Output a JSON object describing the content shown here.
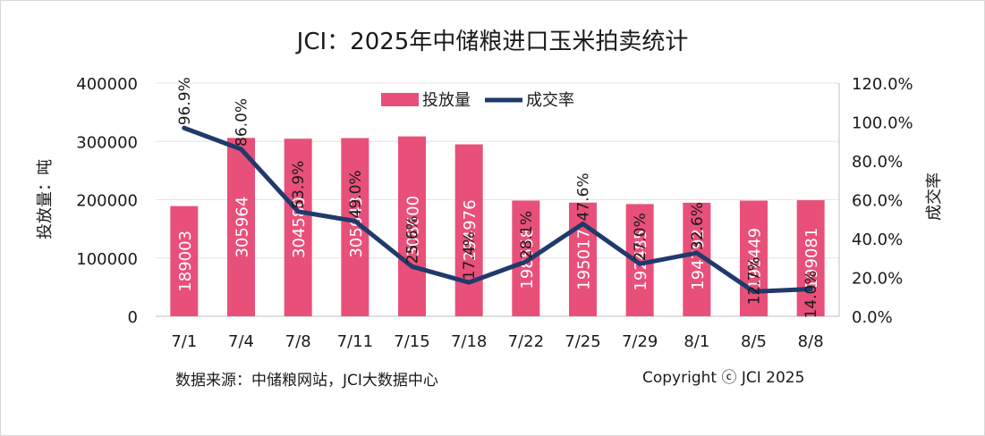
{
  "chart_data": {
    "type": "bar",
    "title": "JCI：2025年中储粮进口玉米拍卖统计",
    "categories": [
      "7/1",
      "7/4",
      "7/8",
      "7/11",
      "7/15",
      "7/18",
      "7/22",
      "7/25",
      "7/29",
      "8/1",
      "8/5",
      "8/8"
    ],
    "series": [
      {
        "name": "投放量",
        "type": "bar",
        "axis": "left",
        "color": "#e8507a",
        "values": [
          189003,
          305964,
          304580,
          305643,
          308600,
          294976,
          198558,
          195017,
          192485,
          194792,
          198449,
          199081
        ],
        "labels": [
          "189003",
          "305964",
          "304580",
          "305643",
          "308600",
          "294976",
          "198558",
          "195017",
          "192485",
          "194792",
          "198449",
          "199081"
        ]
      },
      {
        "name": "成交率",
        "type": "line",
        "axis": "right",
        "color": "#1f3a6b",
        "values": [
          96.9,
          86.0,
          53.9,
          49.0,
          25.6,
          17.4,
          28.1,
          47.6,
          27.0,
          32.6,
          12.7,
          14.0
        ],
        "labels": [
          "96.9%",
          "86.0%",
          "53.9%",
          "49.0%",
          "25.6%",
          "17.4%",
          "28.1%",
          "47.6%",
          "27.0%",
          "32.6%",
          "12.7%",
          "14.0%"
        ]
      }
    ],
    "ylabel": "投放量：吨",
    "y2label": "成交率",
    "ylim": [
      0,
      400000
    ],
    "yticks": [
      "0",
      "100000",
      "200000",
      "300000",
      "400000"
    ],
    "y2lim": [
      0,
      120
    ],
    "y2ticks": [
      "0.0%",
      "20.0%",
      "40.0%",
      "60.0%",
      "80.0%",
      "100.0%",
      "120.0%"
    ],
    "grid": true,
    "legend": "top-center"
  },
  "source": "数据来源：中储粮网站，JCI大数据中心",
  "copyright": "Copyright ⓒ JCI 2025",
  "colors": {
    "bar": "#e8507a",
    "line": "#1f3a6b",
    "grid": "#e6e6e6"
  }
}
